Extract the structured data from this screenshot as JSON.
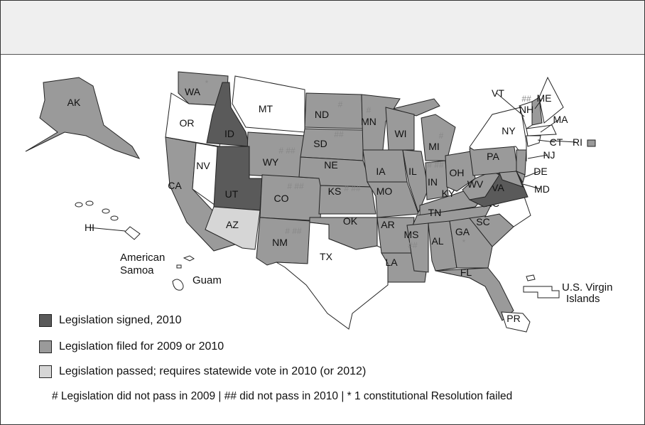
{
  "legend": {
    "items": [
      {
        "label": "Legislation signed, 2010",
        "color": "#5a5a5a"
      },
      {
        "label": "Legislation filed for 2009 or 2010",
        "color": "#9a9a9a"
      },
      {
        "label": "Legislation passed; requires statewide vote in 2010 (or 2012)",
        "color": "#d6d6d6"
      }
    ],
    "footnote": "# Legislation did not pass in 2009 | ## did not pass in 2010 | * 1 constitutional Resolution failed"
  },
  "colors": {
    "signed": "#5a5a5a",
    "filed": "#9a9a9a",
    "passed": "#d6d6d6",
    "none": "#ffffff"
  },
  "states": [
    {
      "code": "WA",
      "status": "filed",
      "mark": "*"
    },
    {
      "code": "OR",
      "status": "none",
      "mark": ""
    },
    {
      "code": "CA",
      "status": "filed",
      "mark": ""
    },
    {
      "code": "NV",
      "status": "none",
      "mark": ""
    },
    {
      "code": "ID",
      "status": "signed",
      "mark": ""
    },
    {
      "code": "MT",
      "status": "none",
      "mark": ""
    },
    {
      "code": "WY",
      "status": "filed",
      "mark": "# ##"
    },
    {
      "code": "UT",
      "status": "signed",
      "mark": ""
    },
    {
      "code": "AZ",
      "status": "passed",
      "mark": ""
    },
    {
      "code": "CO",
      "status": "filed",
      "mark": "# ##"
    },
    {
      "code": "NM",
      "status": "filed",
      "mark": "# ##"
    },
    {
      "code": "ND",
      "status": "filed",
      "mark": "#"
    },
    {
      "code": "SD",
      "status": "filed",
      "mark": "##"
    },
    {
      "code": "NE",
      "status": "filed",
      "mark": ""
    },
    {
      "code": "KS",
      "status": "filed",
      "mark": "# ##"
    },
    {
      "code": "OK",
      "status": "filed",
      "mark": ""
    },
    {
      "code": "TX",
      "status": "none",
      "mark": ""
    },
    {
      "code": "MN",
      "status": "filed",
      "mark": "#"
    },
    {
      "code": "IA",
      "status": "filed",
      "mark": ""
    },
    {
      "code": "MO",
      "status": "filed",
      "mark": ""
    },
    {
      "code": "AR",
      "status": "filed",
      "mark": ""
    },
    {
      "code": "LA",
      "status": "filed",
      "mark": ""
    },
    {
      "code": "WI",
      "status": "filed",
      "mark": ""
    },
    {
      "code": "IL",
      "status": "filed",
      "mark": ""
    },
    {
      "code": "MI",
      "status": "filed",
      "mark": "#"
    },
    {
      "code": "IN",
      "status": "filed",
      "mark": "# ##"
    },
    {
      "code": "OH",
      "status": "filed",
      "mark": ""
    },
    {
      "code": "KY",
      "status": "filed",
      "mark": ""
    },
    {
      "code": "TN",
      "status": "filed",
      "mark": ""
    },
    {
      "code": "MS",
      "status": "filed",
      "mark": "##"
    },
    {
      "code": "AL",
      "status": "filed",
      "mark": ""
    },
    {
      "code": "GA",
      "status": "filed",
      "mark": "*"
    },
    {
      "code": "FL",
      "status": "filed",
      "mark": ""
    },
    {
      "code": "SC",
      "status": "filed",
      "mark": ""
    },
    {
      "code": "NC",
      "status": "none",
      "mark": ""
    },
    {
      "code": "VA",
      "status": "signed",
      "mark": ""
    },
    {
      "code": "WV",
      "status": "filed",
      "mark": "# *"
    },
    {
      "code": "PA",
      "status": "filed",
      "mark": ""
    },
    {
      "code": "NY",
      "status": "none",
      "mark": ""
    },
    {
      "code": "VT",
      "status": "none",
      "mark": ""
    },
    {
      "code": "NH",
      "status": "filed",
      "mark": "##"
    },
    {
      "code": "ME",
      "status": "none",
      "mark": ""
    },
    {
      "code": "MA",
      "status": "none",
      "mark": ""
    },
    {
      "code": "CT",
      "status": "none",
      "mark": ""
    },
    {
      "code": "RI",
      "status": "filed",
      "mark": ""
    },
    {
      "code": "NJ",
      "status": "filed",
      "mark": ""
    },
    {
      "code": "DE",
      "status": "filed",
      "mark": ""
    },
    {
      "code": "MD",
      "status": "filed",
      "mark": ""
    },
    {
      "code": "AK",
      "status": "filed",
      "mark": ""
    },
    {
      "code": "HI",
      "status": "none",
      "mark": ""
    },
    {
      "code": "PR",
      "status": "none",
      "mark": ""
    }
  ],
  "territories": {
    "american_samoa": "American Samoa",
    "guam": "Guam",
    "usvi": "U.S. Virgin Islands"
  }
}
